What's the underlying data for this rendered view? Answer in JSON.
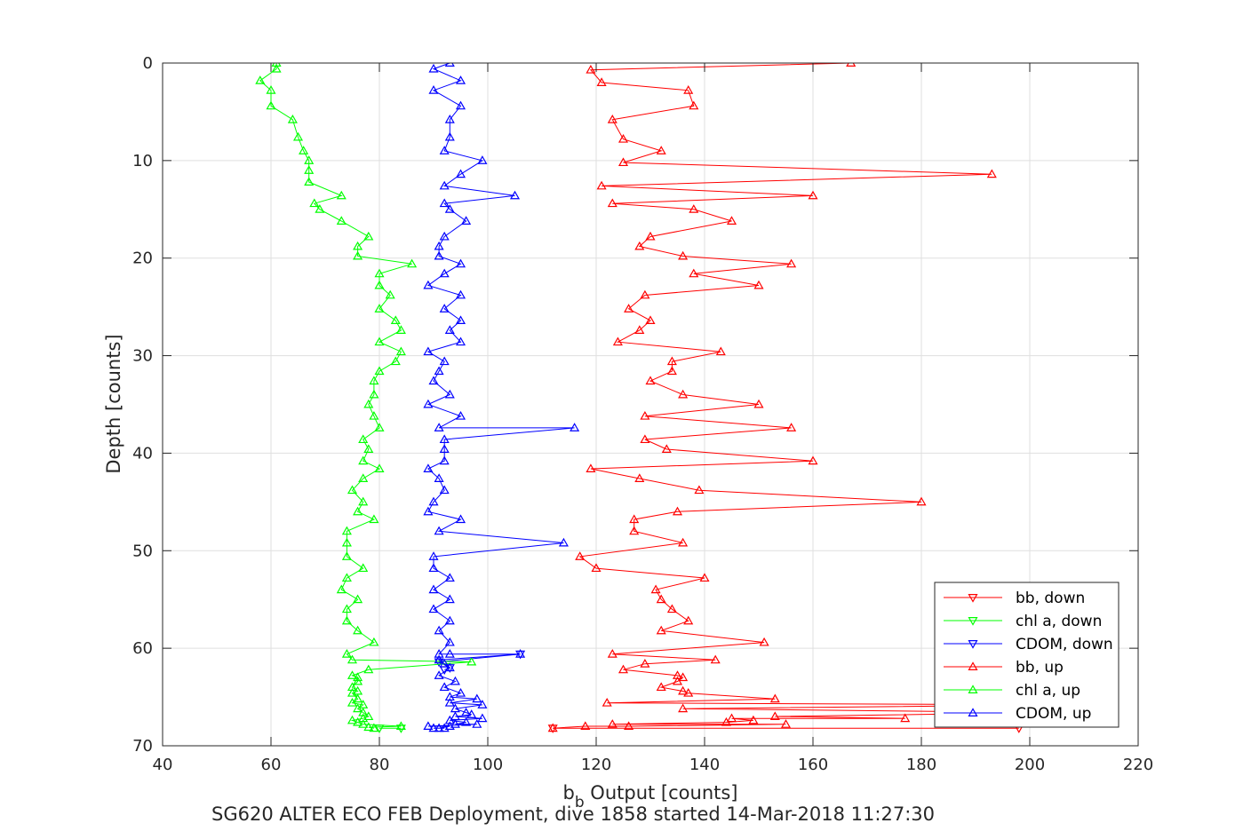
{
  "chart_data": {
    "type": "line",
    "xlabel_main": "b",
    "xlabel_sub": "b",
    "xlabel_rest": " Output [counts]",
    "ylabel": "Depth [counts]",
    "caption": "SG620 ALTER ECO FEB Deployment, dive 1858 started 14-Mar-2018 11:27:30",
    "xlim": [
      40,
      220
    ],
    "ylim": [
      0,
      70
    ],
    "y_reversed": true,
    "xticks": [
      "40",
      "60",
      "80",
      "100",
      "120",
      "140",
      "160",
      "180",
      "200",
      "220"
    ],
    "yticks": [
      "0",
      "10",
      "20",
      "30",
      "40",
      "50",
      "60",
      "70"
    ],
    "grid": true,
    "legend_position": "bottom-right",
    "series": [
      {
        "name": "bb, down",
        "color": "#ff0000",
        "marker": "down",
        "x": [
          198,
          112
        ],
        "y": [
          68.2,
          68.2
        ]
      },
      {
        "name": "chl a, down",
        "color": "#00ff00",
        "marker": "down",
        "x": [
          84,
          80
        ],
        "y": [
          68.2,
          68.2
        ]
      },
      {
        "name": "CDOM, down",
        "color": "#0000ff",
        "marker": "down",
        "x": [
          106,
          91,
          93,
          92
        ],
        "y": [
          60.6,
          61.4,
          62,
          62.2
        ]
      },
      {
        "name": "bb, up",
        "color": "#ff0000",
        "marker": "up",
        "x": [
          167,
          119,
          121,
          137,
          138,
          123,
          125,
          132,
          125,
          193,
          121,
          160,
          123,
          138,
          145,
          130,
          128,
          136,
          156,
          138,
          150,
          129,
          126,
          130,
          128,
          124,
          143,
          134,
          134,
          130,
          136,
          150,
          129,
          156,
          129,
          133,
          160,
          119,
          128,
          139,
          180,
          135,
          127,
          127,
          136,
          117,
          120,
          140,
          131,
          132,
          134,
          137,
          132,
          151,
          123,
          142,
          129,
          125,
          135,
          136,
          135,
          132,
          136,
          137,
          153,
          122,
          206,
          136,
          204,
          153,
          177,
          145,
          149,
          144,
          123,
          155,
          126,
          118,
          112
        ],
        "y": [
          0,
          0.7,
          2,
          2.8,
          4.4,
          5.8,
          7.8,
          9,
          10.2,
          11.4,
          12.6,
          13.6,
          14.4,
          15,
          16.2,
          17.8,
          18.8,
          19.8,
          20.6,
          21.6,
          22.8,
          23.8,
          25.2,
          26.4,
          27.4,
          28.6,
          29.6,
          30.6,
          31.6,
          32.6,
          34,
          35,
          36.2,
          37.4,
          38.6,
          39.6,
          40.8,
          41.6,
          42.6,
          43.8,
          45,
          46,
          46.8,
          48,
          49.2,
          50.6,
          51.8,
          52.8,
          54,
          55,
          56,
          57.2,
          58.2,
          59.4,
          60.6,
          61.2,
          61.6,
          62.2,
          62.8,
          63,
          63.4,
          64,
          64.4,
          64.6,
          65.2,
          65.6,
          65.8,
          66.2,
          66.6,
          67,
          67.2,
          67.2,
          67.4,
          67.6,
          67.8,
          67.8,
          68,
          68,
          68.2
        ]
      },
      {
        "name": "chl a, up",
        "color": "#00ff00",
        "marker": "up",
        "x": [
          61,
          61,
          58,
          60,
          60,
          64,
          65,
          66,
          67,
          67,
          67,
          73,
          68,
          69,
          73,
          78,
          76,
          76,
          86,
          80,
          80,
          82,
          80,
          83,
          84,
          80,
          84,
          83,
          80,
          79,
          79,
          78,
          79,
          80,
          77,
          78,
          77,
          80,
          77,
          75,
          77,
          76,
          79,
          74,
          74,
          74,
          77,
          74,
          73,
          76,
          74,
          74,
          76,
          79,
          74,
          75,
          97,
          78,
          75,
          76,
          76,
          75,
          76,
          75,
          76,
          75,
          77,
          76,
          77,
          78,
          77,
          75,
          76,
          77,
          84,
          78,
          79
        ],
        "y": [
          0,
          0.6,
          1.8,
          2.8,
          4.4,
          5.8,
          7.6,
          9,
          10,
          11,
          12.2,
          13.6,
          14.4,
          15,
          16.2,
          17.8,
          18.8,
          19.8,
          20.6,
          21.6,
          22.8,
          23.8,
          25.2,
          26.4,
          27.4,
          28.6,
          29.6,
          30.6,
          31.6,
          32.6,
          34,
          35,
          36.2,
          37.4,
          38.6,
          39.6,
          40.8,
          41.6,
          42.6,
          43.8,
          45,
          46,
          46.8,
          48,
          49.2,
          50.6,
          51.8,
          52.8,
          54,
          55,
          56,
          57.2,
          58.2,
          59.4,
          60.6,
          61.2,
          61.4,
          62.2,
          62.8,
          63,
          63.4,
          64,
          64.4,
          64.6,
          65.2,
          65.6,
          65.8,
          66.2,
          66.6,
          67,
          67.2,
          67.4,
          67.6,
          67.8,
          68,
          68.1,
          68.2
        ]
      },
      {
        "name": "CDOM, up",
        "color": "#0000ff",
        "marker": "up",
        "x": [
          93,
          90,
          95,
          90,
          95,
          93,
          93,
          92,
          99,
          95,
          92,
          105,
          92,
          93,
          96,
          92,
          91,
          91,
          95,
          92,
          89,
          95,
          92,
          95,
          93,
          95,
          89,
          92,
          91,
          90,
          93,
          89,
          95,
          91,
          116,
          92,
          92,
          92,
          89,
          91,
          92,
          90,
          89,
          95,
          91,
          114,
          90,
          90,
          93,
          90,
          93,
          90,
          93,
          91,
          93,
          91,
          93,
          106,
          91,
          92,
          93,
          91,
          94,
          92,
          95,
          93,
          98,
          93,
          99,
          94,
          96,
          97,
          94,
          99,
          93,
          96,
          94,
          98,
          89,
          93,
          91,
          92,
          90
        ],
        "y": [
          0,
          0.6,
          1.8,
          2.8,
          4.4,
          5.8,
          7.6,
          9,
          10,
          11.4,
          12.6,
          13.6,
          14.4,
          15,
          16.2,
          17.8,
          18.8,
          19.8,
          20.6,
          21.6,
          22.8,
          23.8,
          25.2,
          26.4,
          27.4,
          28.6,
          29.6,
          30.6,
          31.6,
          32.6,
          34,
          35,
          36.2,
          37.4,
          37.4,
          38.6,
          39.6,
          40.8,
          41.6,
          42.6,
          43.8,
          45,
          46,
          46.8,
          48,
          49.2,
          50.6,
          51.8,
          52.8,
          54,
          55,
          56,
          57.2,
          58.2,
          59.4,
          60.6,
          60.6,
          60.6,
          61.2,
          61.6,
          62,
          62.8,
          63.4,
          64,
          64.6,
          65,
          65.2,
          65.6,
          65.8,
          66.2,
          66.6,
          66.8,
          67,
          67.2,
          67.4,
          67.6,
          67.8,
          67.8,
          68,
          68,
          68.2,
          68.2,
          68.2
        ]
      }
    ]
  }
}
